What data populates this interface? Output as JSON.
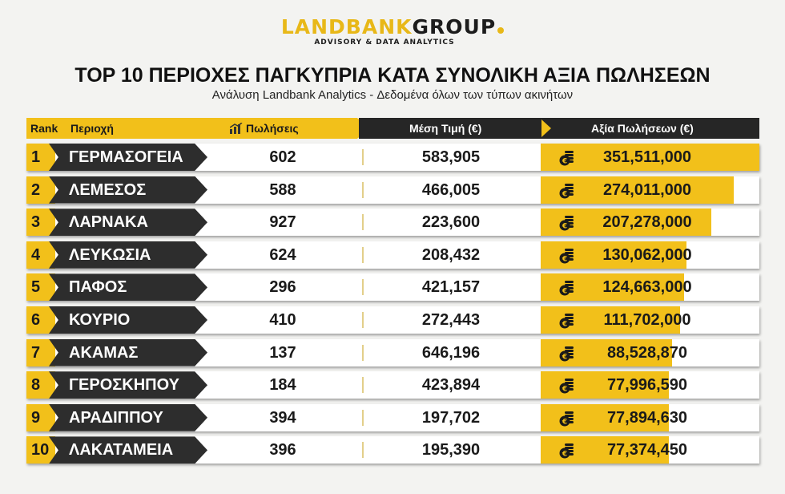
{
  "logo": {
    "part1": "LANDBANK",
    "part2": "GROUP",
    "tagline": "ADVISORY & DATA ANALYTICS"
  },
  "title": "TOP 10 ΠΕΡΙΟΧΕΣ ΠΑΓΚΥΠΡΙΑ ΚΑΤΑ ΣΥΝΟΛΙΚΗ ΑΞΙΑ ΠΩΛΗΣΕΩΝ",
  "subtitle": "Ανάλυση Landbank Analytics - Δεδομένα όλων των τύπων ακινήτων",
  "colors": {
    "accent": "#f2c01a",
    "dark": "#2d2d2d"
  },
  "chart_data": {
    "type": "table",
    "columns": [
      "Rank",
      "Περιοχή",
      "Πωλήσεις",
      "Μέση Τιμή (€)",
      "Αξία Πωλήσεων (€)"
    ],
    "bar_column": "Αξία Πωλήσεων (€)",
    "rows": [
      {
        "rank": "1",
        "area": "ΓΕΡΜΑΣΟΓΕΙΑ",
        "sales": "602",
        "avg_price": "583,905",
        "value": "351,511,000",
        "value_num": 351511000
      },
      {
        "rank": "2",
        "area": "ΛΕΜΕΣΟΣ",
        "sales": "588",
        "avg_price": "466,005",
        "value": "274,011,000",
        "value_num": 274011000
      },
      {
        "rank": "3",
        "area": "ΛΑΡΝΑΚΑ",
        "sales": "927",
        "avg_price": "223,600",
        "value": "207,278,000",
        "value_num": 207278000
      },
      {
        "rank": "4",
        "area": "ΛΕΥΚΩΣΙΑ",
        "sales": "624",
        "avg_price": "208,432",
        "value": "130,062,000",
        "value_num": 130062000
      },
      {
        "rank": "5",
        "area": "ΠΑΦΟΣ",
        "sales": "296",
        "avg_price": "421,157",
        "value": "124,663,000",
        "value_num": 124663000
      },
      {
        "rank": "6",
        "area": "ΚΟΥΡΙΟ",
        "sales": "410",
        "avg_price": "272,443",
        "value": "111,702,000",
        "value_num": 111702000
      },
      {
        "rank": "7",
        "area": "ΑΚΑΜΑΣ",
        "sales": "137",
        "avg_price": "646,196",
        "value": "88,528,870",
        "value_num": 88528870
      },
      {
        "rank": "8",
        "area": "ΓΕΡΟΣΚΗΠΟΥ",
        "sales": "184",
        "avg_price": "423,894",
        "value": "77,996,590",
        "value_num": 77996590
      },
      {
        "rank": "9",
        "area": "ΑΡΑΔΙΠΠΟΥ",
        "sales": "394",
        "avg_price": "197,702",
        "value": "77,894,630",
        "value_num": 77894630
      },
      {
        "rank": "10",
        "area": "ΛΑΚΑΤΑΜΕΙΑ",
        "sales": "396",
        "avg_price": "195,390",
        "value": "77,374,450",
        "value_num": 77374450
      }
    ]
  }
}
